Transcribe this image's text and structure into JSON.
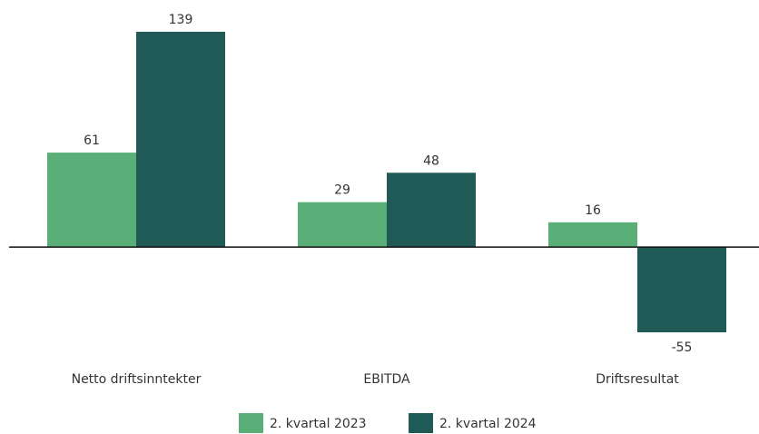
{
  "chart_data": {
    "type": "bar",
    "categories": [
      "Netto driftsinntekter",
      "EBITDA",
      "Driftsresultat"
    ],
    "series": [
      {
        "name": "2. kvartal 2023",
        "color": "#5aaf78",
        "values": [
          61,
          29,
          16
        ]
      },
      {
        "name": "2. kvartal 2024",
        "color": "#1f5a56",
        "values": [
          139,
          48,
          -55
        ]
      }
    ]
  }
}
